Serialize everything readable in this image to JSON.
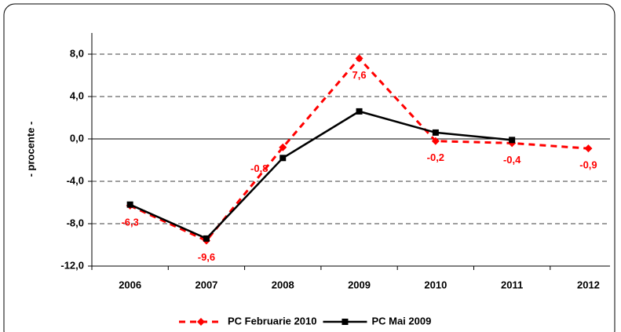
{
  "chart_data": {
    "type": "line",
    "y_label": "- procente -",
    "categories": [
      "2006",
      "2007",
      "2008",
      "2009",
      "2010",
      "2011",
      "2012"
    ],
    "series": [
      {
        "name": "PC Februarie 2010",
        "color": "#ff0000",
        "dashed": true,
        "marker": "diamond",
        "values": [
          -6.3,
          -9.6,
          -0.8,
          7.6,
          -0.2,
          -0.4,
          -0.9
        ],
        "value_labels": [
          "-6,3",
          "-9,6",
          "-0,8",
          "7,6",
          "-0,2",
          "-0,4",
          "-0,9"
        ]
      },
      {
        "name": "PC Mai 2009",
        "color": "#000000",
        "dashed": false,
        "marker": "square",
        "values": [
          -6.2,
          -9.4,
          -1.8,
          2.6,
          0.6,
          -0.1,
          null
        ]
      }
    ],
    "ylim": [
      -12,
      10
    ],
    "yticks": [
      {
        "value": -12,
        "label": "-12,0"
      },
      {
        "value": -8,
        "label": "-8,0"
      },
      {
        "value": -4,
        "label": "-4,0"
      },
      {
        "value": 0,
        "label": "0,0"
      },
      {
        "value": 4,
        "label": "4,0"
      },
      {
        "value": 8,
        "label": "8,0"
      }
    ],
    "grid": true
  }
}
